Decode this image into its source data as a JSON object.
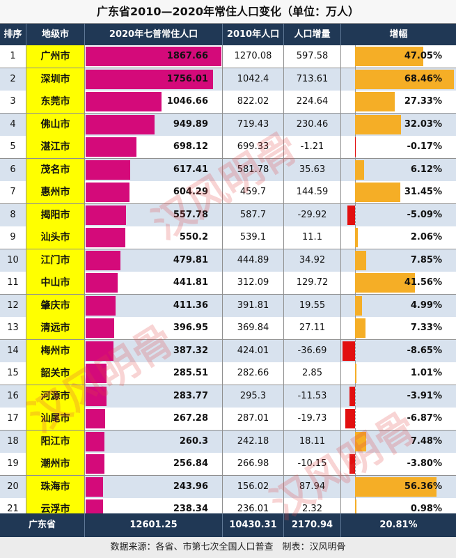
{
  "title": "广东省2010—2020年常住人口变化（单位：万人）",
  "headers": {
    "rank": "排序",
    "city": "地级市",
    "pop2020": "2020年七普常住人口",
    "pop2010": "2010年人口",
    "increase": "人口增量",
    "rate": "增幅"
  },
  "rows": [
    {
      "rank": "1",
      "city": "广州市",
      "pop2020": "1867.66",
      "pop2010": "1270.08",
      "increase": "597.58",
      "rate": "47.05%"
    },
    {
      "rank": "2",
      "city": "深圳市",
      "pop2020": "1756.01",
      "pop2010": "1042.4",
      "increase": "713.61",
      "rate": "68.46%"
    },
    {
      "rank": "3",
      "city": "东莞市",
      "pop2020": "1046.66",
      "pop2010": "822.02",
      "increase": "224.64",
      "rate": "27.33%"
    },
    {
      "rank": "4",
      "city": "佛山市",
      "pop2020": "949.89",
      "pop2010": "719.43",
      "increase": "230.46",
      "rate": "32.03%"
    },
    {
      "rank": "5",
      "city": "湛江市",
      "pop2020": "698.12",
      "pop2010": "699.33",
      "increase": "-1.21",
      "rate": "-0.17%"
    },
    {
      "rank": "6",
      "city": "茂名市",
      "pop2020": "617.41",
      "pop2010": "581.78",
      "increase": "35.63",
      "rate": "6.12%"
    },
    {
      "rank": "7",
      "city": "惠州市",
      "pop2020": "604.29",
      "pop2010": "459.7",
      "increase": "144.59",
      "rate": "31.45%"
    },
    {
      "rank": "8",
      "city": "揭阳市",
      "pop2020": "557.78",
      "pop2010": "587.7",
      "increase": "-29.92",
      "rate": "-5.09%"
    },
    {
      "rank": "9",
      "city": "汕头市",
      "pop2020": "550.2",
      "pop2010": "539.1",
      "increase": "11.1",
      "rate": "2.06%"
    },
    {
      "rank": "10",
      "city": "江门市",
      "pop2020": "479.81",
      "pop2010": "444.89",
      "increase": "34.92",
      "rate": "7.85%"
    },
    {
      "rank": "11",
      "city": "中山市",
      "pop2020": "441.81",
      "pop2010": "312.09",
      "increase": "129.72",
      "rate": "41.56%"
    },
    {
      "rank": "12",
      "city": "肇庆市",
      "pop2020": "411.36",
      "pop2010": "391.81",
      "increase": "19.55",
      "rate": "4.99%"
    },
    {
      "rank": "13",
      "city": "清远市",
      "pop2020": "396.95",
      "pop2010": "369.84",
      "increase": "27.11",
      "rate": "7.33%"
    },
    {
      "rank": "14",
      "city": "梅州市",
      "pop2020": "387.32",
      "pop2010": "424.01",
      "increase": "-36.69",
      "rate": "-8.65%"
    },
    {
      "rank": "15",
      "city": "韶关市",
      "pop2020": "285.51",
      "pop2010": "282.66",
      "increase": "2.85",
      "rate": "1.01%"
    },
    {
      "rank": "16",
      "city": "河源市",
      "pop2020": "283.77",
      "pop2010": "295.3",
      "increase": "-11.53",
      "rate": "-3.91%"
    },
    {
      "rank": "17",
      "city": "汕尾市",
      "pop2020": "267.28",
      "pop2010": "287.01",
      "increase": "-19.73",
      "rate": "-6.87%"
    },
    {
      "rank": "18",
      "city": "阳江市",
      "pop2020": "260.3",
      "pop2010": "242.18",
      "increase": "18.11",
      "rate": "7.48%"
    },
    {
      "rank": "19",
      "city": "潮州市",
      "pop2020": "256.84",
      "pop2010": "266.98",
      "increase": "-10.15",
      "rate": "-3.80%"
    },
    {
      "rank": "20",
      "city": "珠海市",
      "pop2020": "243.96",
      "pop2010": "156.02",
      "increase": "87.94",
      "rate": "56.36%"
    },
    {
      "rank": "21",
      "city": "云浮市",
      "pop2020": "238.34",
      "pop2010": "236.01",
      "increase": "2.32",
      "rate": "0.98%"
    }
  ],
  "total": {
    "label": "广东省",
    "pop2020": "12601.25",
    "pop2010": "10430.31",
    "increase": "2170.94",
    "rate": "20.81%"
  },
  "footer": "数据来源：各省、市第七次全国人口普查　制表：汉风明骨",
  "watermark": "汉风明骨",
  "colors": {
    "header_bg": "#203855",
    "city_cell": "#ffff00",
    "pop_bar": "#d40a7a",
    "rate_positive": "#f5ae26",
    "rate_negative": "#e20f0f",
    "alt_row": "#d8e2ee"
  }
}
